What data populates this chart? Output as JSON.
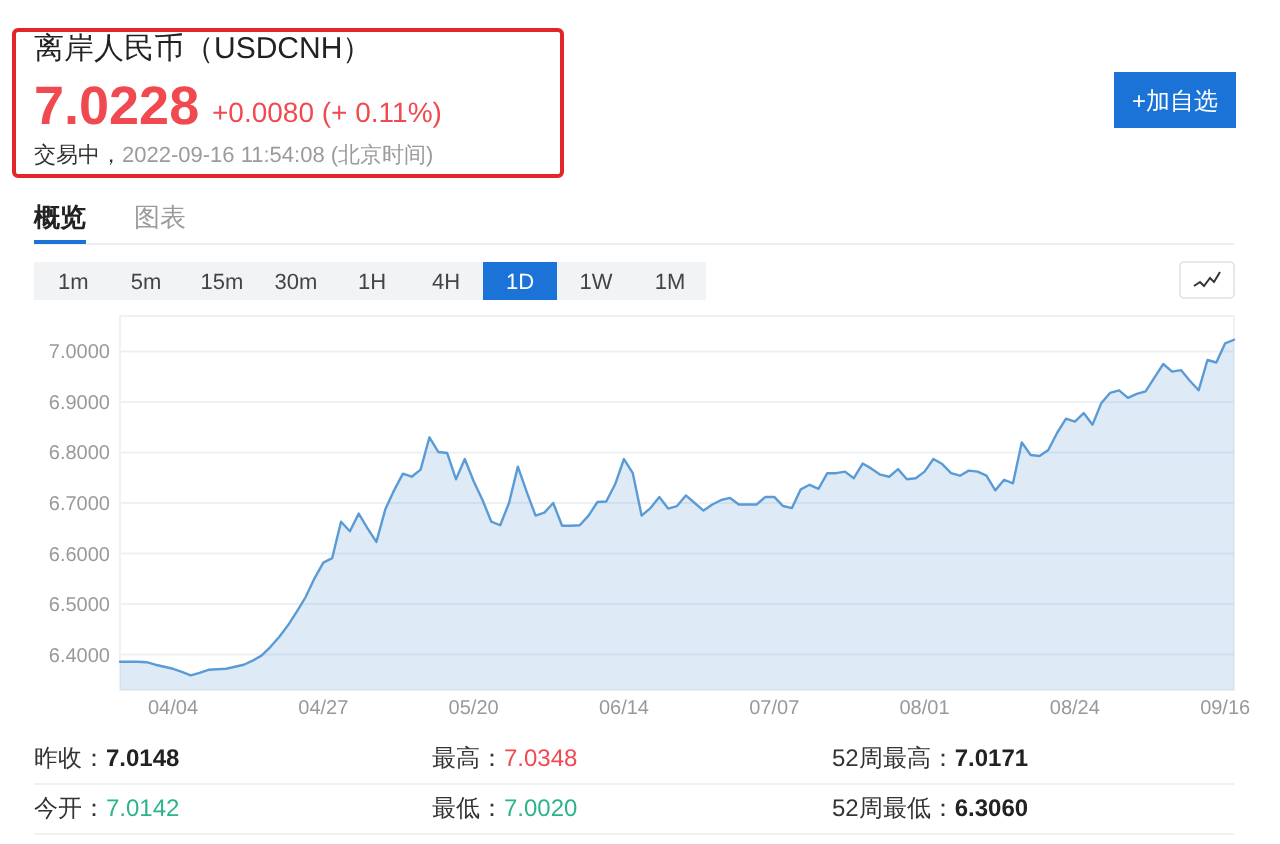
{
  "chart_data": {
    "type": "area",
    "title": "离岸人民币（USDCNH）",
    "subtitle": "7.0228",
    "categories": [
      null,
      null,
      null,
      null,
      null,
      null,
      "04/04",
      null,
      null,
      null,
      null,
      null,
      null,
      null,
      null,
      null,
      null,
      null,
      null,
      null,
      null,
      null,
      null,
      "04/27",
      null,
      null,
      null,
      null,
      null,
      null,
      null,
      null,
      null,
      null,
      null,
      null,
      null,
      null,
      null,
      null,
      "05/20",
      null,
      null,
      null,
      null,
      null,
      null,
      null,
      null,
      null,
      null,
      null,
      null,
      null,
      null,
      null,
      null,
      "06/14",
      null,
      null,
      null,
      null,
      null,
      null,
      null,
      null,
      null,
      null,
      null,
      null,
      null,
      null,
      null,
      null,
      "07/07",
      null,
      null,
      null,
      null,
      null,
      null,
      null,
      null,
      null,
      null,
      null,
      null,
      null,
      null,
      null,
      null,
      "08/01",
      null,
      null,
      null,
      null,
      null,
      null,
      null,
      null,
      null,
      null,
      null,
      null,
      null,
      null,
      null,
      null,
      "08/24",
      null,
      null,
      null,
      null,
      null,
      null,
      null,
      null,
      null,
      null,
      null,
      null,
      null,
      null,
      null,
      null,
      "09/16",
      null
    ],
    "series": [
      {
        "color": "#5b9bd5",
        "values": [
          6.386,
          6.386,
          6.386,
          6.385,
          6.38,
          6.376,
          6.372,
          6.366,
          6.359,
          6.364,
          6.37,
          6.371,
          6.372,
          6.376,
          6.38,
          6.388,
          6.398,
          6.415,
          6.435,
          6.458,
          6.485,
          6.514,
          6.551,
          6.582,
          6.591,
          6.663,
          6.644,
          6.679,
          6.65,
          6.623,
          6.687,
          6.725,
          6.758,
          6.752,
          6.766,
          6.83,
          6.801,
          6.799,
          6.747,
          6.787,
          6.743,
          6.706,
          6.663,
          6.656,
          6.7,
          6.772,
          6.722,
          6.675,
          6.681,
          6.7,
          6.655,
          6.655,
          6.656,
          6.675,
          6.702,
          6.703,
          6.737,
          6.787,
          6.759,
          6.675,
          6.69,
          6.712,
          6.689,
          6.694,
          6.715,
          6.7,
          6.685,
          6.697,
          6.706,
          6.71,
          6.697,
          6.697,
          6.697,
          6.712,
          6.712,
          6.694,
          6.69,
          6.727,
          6.736,
          6.728,
          6.759,
          6.759,
          6.762,
          6.749,
          6.778,
          6.768,
          6.756,
          6.752,
          6.767,
          6.747,
          6.749,
          6.762,
          6.787,
          6.777,
          6.759,
          6.754,
          6.764,
          6.762,
          6.754,
          6.725,
          6.746,
          6.739,
          6.82,
          6.795,
          6.793,
          6.805,
          6.839,
          6.867,
          6.861,
          6.878,
          6.855,
          6.898,
          6.918,
          6.923,
          6.908,
          6.916,
          6.921,
          6.948,
          6.975,
          6.96,
          6.963,
          6.942,
          6.923,
          6.983,
          6.978,
          7.016,
          7.023
        ]
      }
    ],
    "ylim": [
      6.33,
      7.07
    ],
    "yticks": [
      {
        "value": 6.4,
        "label": "6.4000"
      },
      {
        "value": 6.5,
        "label": "6.5000"
      },
      {
        "value": 6.6,
        "label": "6.6000"
      },
      {
        "value": 6.7,
        "label": "6.7000"
      },
      {
        "value": 6.8,
        "label": "6.8000"
      },
      {
        "value": 6.9,
        "label": "6.9000"
      },
      {
        "value": 7.0,
        "label": "7.0000"
      }
    ],
    "grid": "y",
    "annotations": [
      "+0.0080 (+ 0.11%)",
      "交易中，",
      "2022-09-16 11:54:08 (北京时间)",
      "+加自选",
      "概览",
      "图表",
      "1m",
      "5m",
      "15m",
      "30m",
      "1H",
      "4H",
      "1D",
      "1W",
      "1M",
      "昨收：",
      "7.0148",
      "最高：",
      "7.0348",
      "52周最高：",
      "7.0171",
      "今开：",
      "7.0142",
      "最低：",
      "7.0020",
      "52周最低：",
      "6.3060"
    ]
  }
}
